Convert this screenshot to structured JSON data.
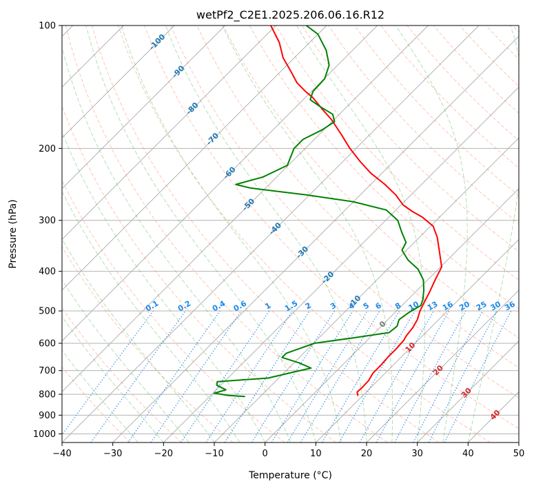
{
  "chart_data": {
    "type": "line",
    "title": "wetPf2_C2E1.2025.206.06.16.R12",
    "xlabel": "Temperature (°C)",
    "ylabel": "Pressure (hPa)",
    "x_scale": "skew-T (isotherms skewed 45°)",
    "y_scale": "log",
    "xlim": [
      -40,
      50
    ],
    "ylim": [
      1050,
      100
    ],
    "x_ticks": [
      -40,
      -30,
      -20,
      -10,
      0,
      10,
      20,
      30,
      40,
      50
    ],
    "y_ticks": [
      100,
      200,
      300,
      400,
      500,
      600,
      700,
      800,
      900,
      1000
    ],
    "grid": true,
    "colors": {
      "temperature": "#ff0000",
      "dewpoint": "#008000",
      "isotherm": "#a9a9a9",
      "dry_adiabat": "#ff7f50",
      "moist_adiabat": "#2ca02c",
      "mixing_ratio": "#1e88e5",
      "height_label": "#1f77b4",
      "height_label_low": "#d62728"
    },
    "series": [
      {
        "name": "",
        "role": "temperature",
        "points": [
          {
            "p": 805,
            "t": 9.0
          },
          {
            "p": 790,
            "t": 8.2
          },
          {
            "p": 770,
            "t": 8.3
          },
          {
            "p": 740,
            "t": 8.2
          },
          {
            "p": 710,
            "t": 7.6
          },
          {
            "p": 680,
            "t": 7.6
          },
          {
            "p": 650,
            "t": 7.4
          },
          {
            "p": 620,
            "t": 7.4
          },
          {
            "p": 590,
            "t": 7.2
          },
          {
            "p": 575,
            "t": 6.8
          },
          {
            "p": 550,
            "t": 6.5
          },
          {
            "p": 525,
            "t": 5.8
          },
          {
            "p": 500,
            "t": 4.6
          },
          {
            "p": 475,
            "t": 3.7
          },
          {
            "p": 450,
            "t": 2.8
          },
          {
            "p": 420,
            "t": 1.5
          },
          {
            "p": 390,
            "t": 0.2
          },
          {
            "p": 360,
            "t": -3.0
          },
          {
            "p": 330,
            "t": -6.5
          },
          {
            "p": 310,
            "t": -9.5
          },
          {
            "p": 295,
            "t": -13.3
          },
          {
            "p": 285,
            "t": -16.6
          },
          {
            "p": 275,
            "t": -19.6
          },
          {
            "p": 260,
            "t": -23.0
          },
          {
            "p": 245,
            "t": -27.2
          },
          {
            "p": 230,
            "t": -32.2
          },
          {
            "p": 215,
            "t": -36.7
          },
          {
            "p": 200,
            "t": -41.2
          },
          {
            "p": 185,
            "t": -45.6
          },
          {
            "p": 170,
            "t": -50.5
          },
          {
            "p": 160,
            "t": -54.5
          },
          {
            "p": 150,
            "t": -58.6
          },
          {
            "p": 145,
            "t": -61.2
          },
          {
            "p": 138,
            "t": -64.6
          },
          {
            "p": 130,
            "t": -67.8
          },
          {
            "p": 120,
            "t": -72.2
          },
          {
            "p": 110,
            "t": -76.0
          },
          {
            "p": 100,
            "t": -81.0
          }
        ]
      },
      {
        "name": "",
        "role": "dewpoint",
        "points": [
          {
            "p": 810,
            "t": -13.1
          },
          {
            "p": 805,
            "t": -16.6
          },
          {
            "p": 795,
            "t": -19.7
          },
          {
            "p": 780,
            "t": -18.1
          },
          {
            "p": 760,
            "t": -20.8
          },
          {
            "p": 745,
            "t": -21.4
          },
          {
            "p": 730,
            "t": -12.1
          },
          {
            "p": 705,
            "t": -8.1
          },
          {
            "p": 690,
            "t": -5.6
          },
          {
            "p": 670,
            "t": -9.0
          },
          {
            "p": 650,
            "t": -13.4
          },
          {
            "p": 635,
            "t": -13.4
          },
          {
            "p": 620,
            "t": -11.9
          },
          {
            "p": 600,
            "t": -9.8
          },
          {
            "p": 580,
            "t": -2.5
          },
          {
            "p": 565,
            "t": 2.8
          },
          {
            "p": 545,
            "t": 3.1
          },
          {
            "p": 525,
            "t": 2.2
          },
          {
            "p": 505,
            "t": 2.7
          },
          {
            "p": 485,
            "t": 3.7
          },
          {
            "p": 470,
            "t": 3.0
          },
          {
            "p": 445,
            "t": 1.3
          },
          {
            "p": 420,
            "t": -0.8
          },
          {
            "p": 395,
            "t": -4.0
          },
          {
            "p": 375,
            "t": -7.8
          },
          {
            "p": 355,
            "t": -10.9
          },
          {
            "p": 340,
            "t": -11.6
          },
          {
            "p": 320,
            "t": -14.6
          },
          {
            "p": 300,
            "t": -17.6
          },
          {
            "p": 283,
            "t": -21.9
          },
          {
            "p": 270,
            "t": -30.1
          },
          {
            "p": 260,
            "t": -40.6
          },
          {
            "p": 250,
            "t": -53.0
          },
          {
            "p": 245,
            "t": -56.6
          },
          {
            "p": 235,
            "t": -52.7
          },
          {
            "p": 220,
            "t": -50.2
          },
          {
            "p": 200,
            "t": -52.2
          },
          {
            "p": 190,
            "t": -52.2
          },
          {
            "p": 180,
            "t": -50.3
          },
          {
            "p": 172,
            "t": -49.5
          },
          {
            "p": 165,
            "t": -51.3
          },
          {
            "p": 158,
            "t": -55.3
          },
          {
            "p": 152,
            "t": -58.6
          },
          {
            "p": 145,
            "t": -59.7
          },
          {
            "p": 135,
            "t": -59.9
          },
          {
            "p": 125,
            "t": -61.7
          },
          {
            "p": 115,
            "t": -65.2
          },
          {
            "p": 105,
            "t": -70.0
          },
          {
            "p": 100,
            "t": -74.0
          }
        ]
      }
    ],
    "mixing_ratio_labels": [
      "0.1",
      "0.2",
      "0.4",
      "0.6",
      "1",
      "1.5",
      "2",
      "3",
      "4",
      "5",
      "6",
      "8",
      "10",
      "13",
      "16",
      "20",
      "25",
      "30",
      "36"
    ],
    "mixing_ratio_values": [
      0.1,
      0.2,
      0.4,
      0.6,
      1,
      1.5,
      2,
      3,
      4,
      5,
      6,
      8,
      10,
      13,
      16,
      20,
      25,
      30,
      36
    ],
    "height_labels": [
      {
        "text": "-100",
        "t": -100,
        "p": 110
      },
      {
        "text": "-90",
        "t": -90,
        "p": 130
      },
      {
        "text": "-80",
        "t": -80,
        "p": 160
      },
      {
        "text": "-70",
        "t": -70,
        "p": 190
      },
      {
        "text": "-60",
        "t": -60,
        "p": 230
      },
      {
        "text": "-50",
        "t": -50,
        "p": 275
      },
      {
        "text": "-40",
        "t": -40,
        "p": 315
      },
      {
        "text": "-30",
        "t": -30,
        "p": 360
      },
      {
        "text": "-20",
        "t": -20,
        "p": 415
      },
      {
        "text": "-10",
        "t": -10,
        "p": 475
      },
      {
        "text": "0",
        "t": 0,
        "p": 540
      },
      {
        "text": "10",
        "t": 10,
        "p": 615
      },
      {
        "text": "20",
        "t": 20,
        "p": 700
      },
      {
        "text": "30",
        "t": 30,
        "p": 795
      },
      {
        "text": "40",
        "t": 40,
        "p": 900
      }
    ]
  }
}
